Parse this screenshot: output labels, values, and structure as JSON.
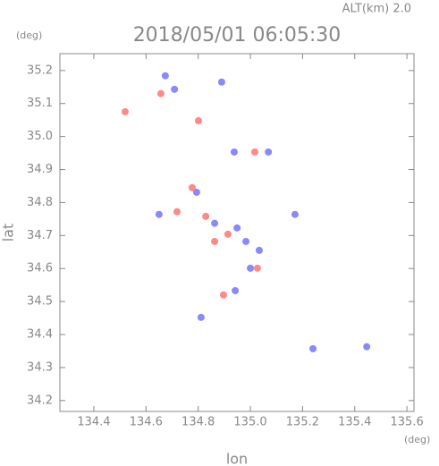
{
  "chart_data": {
    "type": "scatter",
    "title": "2018/05/01 06:05:30",
    "subtitle": "ALT(km) 2.0",
    "y_unit": "(deg)",
    "x_unit": "(deg)",
    "xlabel": "lon",
    "ylabel": "lat",
    "xlim": [
      134.27,
      135.627
    ],
    "ylim": [
      34.167,
      35.251
    ],
    "xticks": [
      134.4,
      134.6,
      134.8,
      {
        "value": 135,
        "label": "135.0"
      },
      135.2,
      135.4,
      135.6
    ],
    "yticks": [
      34.2,
      34.3,
      34.4,
      34.5,
      34.6,
      34.7,
      34.8,
      34.9,
      {
        "value": 35,
        "label": "35.0"
      },
      35.1,
      35.2
    ],
    "series": [
      {
        "color": "#7b7bff",
        "x": [
          134.674,
          134.709,
          134.89,
          134.65,
          134.794,
          134.863,
          134.949,
          134.983,
          135.034,
          135.0,
          134.942,
          134.811,
          135.069,
          135.171,
          135.24,
          135.446,
          134.938
        ],
        "values": [
          35.184,
          35.143,
          35.165,
          34.764,
          34.831,
          34.737,
          34.723,
          34.682,
          34.655,
          34.601,
          34.533,
          34.452,
          34.953,
          34.764,
          34.357,
          34.363,
          34.953
        ]
      },
      {
        "color": "#ff7b7b",
        "x": [
          134.52,
          134.657,
          134.801,
          135.017,
          134.719,
          134.829,
          134.914,
          135.027,
          134.897,
          134.777,
          134.863
        ],
        "values": [
          35.075,
          35.13,
          35.048,
          34.953,
          34.772,
          34.758,
          34.704,
          34.601,
          34.52,
          34.845,
          34.682
        ]
      }
    ]
  }
}
